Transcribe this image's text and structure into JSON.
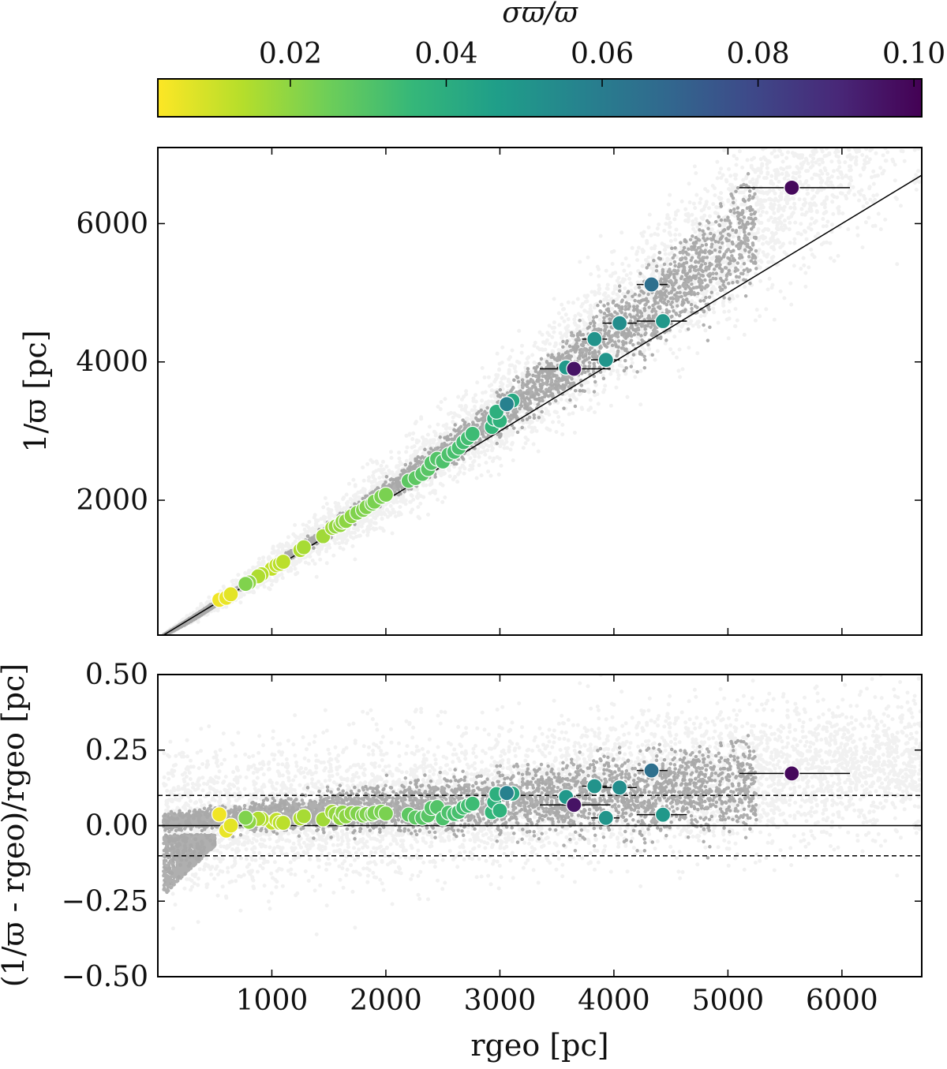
{
  "chart_data": [
    {
      "type": "scatter",
      "panel": "top",
      "xlabel": "",
      "ylabel": "1/ϖ [pc]",
      "xlim": [
        0,
        6700
      ],
      "ylim": [
        50,
        7100
      ],
      "yticks": [
        2000,
        4000,
        6000
      ],
      "ytick_labels": [
        "2000",
        "4000",
        "6000"
      ],
      "xticks": [
        1000,
        2000,
        3000,
        4000,
        5000,
        6000
      ],
      "reference_line": "y = x",
      "background": "grey density of field stars",
      "colorbar": {
        "label": "σϖ/ϖ",
        "range": [
          0.003,
          0.101
        ],
        "ticks": [
          0.02,
          0.04,
          0.06,
          0.08,
          0.1
        ],
        "tick_labels": [
          "0.02",
          "0.04",
          "0.06",
          "0.08",
          "0.10"
        ],
        "colormap": "viridis_r",
        "stops": [
          "#fde725",
          "#b5de2b",
          "#6ece58",
          "#35b779",
          "#1f9e89",
          "#26828e",
          "#31688e",
          "#3e4989",
          "#482878",
          "#440154"
        ],
        "position": "top"
      },
      "series": [
        {
          "points": [
            [
              540,
              560,
              0.005
            ],
            [
              600,
              590,
              0.006
            ],
            [
              640,
              640,
              0.007
            ],
            [
              770,
              790,
              0.022
            ],
            [
              800,
              810,
              0.02
            ],
            [
              880,
              900,
              0.015
            ],
            [
              910,
              930,
              0.014
            ],
            [
              1000,
              1010,
              0.012
            ],
            [
              1040,
              1060,
              0.012
            ],
            [
              1070,
              1080,
              0.013
            ],
            [
              1100,
              1110,
              0.013
            ],
            [
              1250,
              1280,
              0.015
            ],
            [
              1280,
              1320,
              0.016
            ],
            [
              1450,
              1480,
              0.017
            ],
            [
              1530,
              1600,
              0.017
            ],
            [
              1560,
              1620,
              0.019
            ],
            [
              1600,
              1640,
              0.019
            ],
            [
              1620,
              1690,
              0.02
            ],
            [
              1650,
              1700,
              0.02
            ],
            [
              1700,
              1770,
              0.02
            ],
            [
              1750,
              1820,
              0.022
            ],
            [
              1800,
              1860,
              0.022
            ],
            [
              1830,
              1900,
              0.022
            ],
            [
              1880,
              1950,
              0.023
            ],
            [
              1900,
              1980,
              0.023
            ],
            [
              1960,
              2050,
              0.023
            ],
            [
              2000,
              2080,
              0.023
            ],
            [
              2200,
              2280,
              0.028
            ],
            [
              2260,
              2320,
              0.028
            ],
            [
              2320,
              2380,
              0.029
            ],
            [
              2370,
              2450,
              0.029
            ],
            [
              2400,
              2540,
              0.03
            ],
            [
              2450,
              2600,
              0.03
            ],
            [
              2500,
              2560,
              0.031
            ],
            [
              2550,
              2660,
              0.031
            ],
            [
              2600,
              2700,
              0.032
            ],
            [
              2640,
              2760,
              0.032
            ],
            [
              2680,
              2840,
              0.033
            ],
            [
              2720,
              2900,
              0.033
            ],
            [
              2760,
              2960,
              0.034
            ],
            [
              2930,
              3060,
              0.036
            ],
            [
              2950,
              3180,
              0.038
            ],
            [
              2970,
              3280,
              0.039
            ],
            [
              3000,
              3150,
              0.038
            ],
            [
              3060,
              3390,
              0.058
            ],
            [
              3110,
              3440,
              0.042
            ],
            [
              3580,
              3920,
              0.049
            ],
            [
              3650,
              3900,
              0.096
            ],
            [
              3830,
              4330,
              0.051
            ],
            [
              3930,
              4030,
              0.05
            ],
            [
              4050,
              4560,
              0.053
            ],
            [
              4330,
              5120,
              0.065
            ],
            [
              4430,
              4590,
              0.049
            ],
            [
              5560,
              6520,
              0.099
            ]
          ]
        }
      ],
      "error_bars": [
        [
          5560,
          6520,
          5100,
          6070
        ],
        [
          4330,
          5120,
          4200,
          4470
        ],
        [
          4430,
          4590,
          4200,
          4640
        ],
        [
          4050,
          4560,
          3900,
          4200
        ],
        [
          3830,
          4330,
          3720,
          3940
        ],
        [
          3930,
          4030,
          3800,
          4050
        ],
        [
          3650,
          3900,
          3350,
          3970
        ],
        [
          3580,
          3920,
          3500,
          3660
        ]
      ]
    },
    {
      "type": "scatter",
      "panel": "bottom",
      "xlabel": "rgeo [pc]",
      "ylabel": "(1/ϖ - rgeo)/rgeo [pc]",
      "xlim": [
        0,
        6700
      ],
      "ylim": [
        -0.5,
        0.5
      ],
      "xticks": [
        1000,
        2000,
        3000,
        4000,
        5000,
        6000
      ],
      "xtick_labels": [
        "1000",
        "2000",
        "3000",
        "4000",
        "5000",
        "6000"
      ],
      "yticks": [
        -0.5,
        -0.25,
        0.0,
        0.25,
        0.5
      ],
      "ytick_labels": [
        "−0.50",
        "−0.25",
        "0.00",
        "0.25",
        "0.50"
      ],
      "reference_lines": [
        {
          "y": 0.0,
          "style": "solid"
        },
        {
          "y": 0.1,
          "style": "dashed"
        },
        {
          "y": -0.1,
          "style": "dashed"
        }
      ]
    }
  ]
}
